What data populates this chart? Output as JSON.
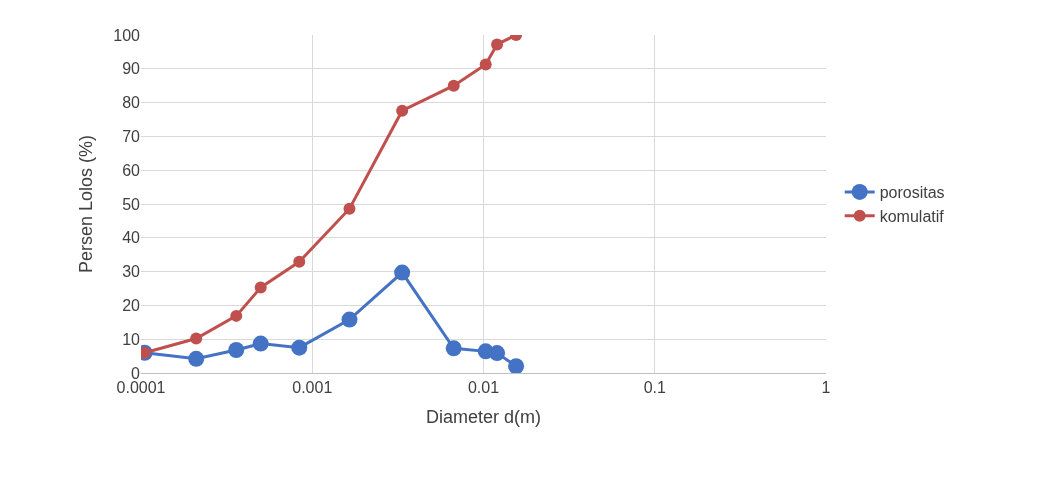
{
  "chart_data": {
    "type": "line",
    "xlabel": "Diameter d(m)",
    "ylabel": "Persen Lolos (%)",
    "log": "x",
    "x": [
      0.000105,
      0.00021,
      0.00036,
      0.0005,
      0.00084,
      0.00165,
      0.00335,
      0.0067,
      0.0103,
      0.012,
      0.0155
    ],
    "series": [
      {
        "name": "porositas",
        "color": "#4472c4",
        "values": [
          6,
          4.2,
          6.8,
          8.7,
          7.5,
          15.8,
          29.7,
          7.3,
          6.4,
          5.9,
          2
        ]
      },
      {
        "name": "komulatif",
        "color": "#c0504d",
        "values": [
          6,
          10.2,
          16.9,
          25.3,
          32.9,
          48.6,
          77.6,
          85,
          91.3,
          97.2,
          100
        ]
      }
    ],
    "xlim": [
      0.0001,
      1
    ],
    "xticks": [
      0.0001,
      0.001,
      0.01,
      0.1,
      1
    ],
    "ylim": [
      0,
      100
    ],
    "yticks": [
      0,
      10,
      20,
      30,
      40,
      50,
      60,
      70,
      80,
      90,
      100
    ],
    "grid": true,
    "legend": "right",
    "marker": "circle",
    "line_style": "solid"
  }
}
